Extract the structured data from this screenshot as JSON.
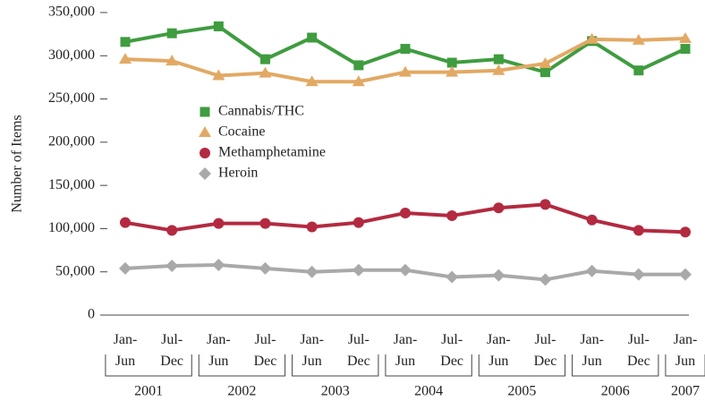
{
  "chart_data": {
    "type": "line",
    "y_label": "Number of Items",
    "categories": [
      "Jan-\nJun",
      "Jul-\nDec",
      "Jan-\nJun",
      "Jul-\nDec",
      "Jan-\nJun",
      "Jul-\nDec",
      "Jan-\nJun",
      "Jul-\nDec",
      "Jan-\nJun",
      "Jul-\nDec",
      "Jan-\nJun",
      "Jul-\nDec",
      "Jan-\nJun"
    ],
    "x_groups": [
      "2001",
      "2002",
      "2003",
      "2004",
      "2005",
      "2006",
      "2007"
    ],
    "series": [
      {
        "name": "Cannabis/THC",
        "color": "#3f9c3f",
        "marker": "square",
        "values": [
          316000,
          326000,
          334000,
          296000,
          321000,
          289000,
          308000,
          292000,
          296000,
          281000,
          317000,
          283000,
          308000
        ]
      },
      {
        "name": "Cocaine",
        "color": "#e2a964",
        "marker": "triangle",
        "values": [
          296000,
          294000,
          277000,
          280000,
          270000,
          270000,
          281000,
          281000,
          283000,
          291000,
          319000,
          318000,
          320000
        ]
      },
      {
        "name": "Methamphetamine",
        "color": "#b32a40",
        "marker": "circle",
        "values": [
          107000,
          98000,
          106000,
          106000,
          102000,
          107000,
          118000,
          115000,
          124000,
          128000,
          110000,
          98000,
          96000
        ]
      },
      {
        "name": "Heroin",
        "color": "#a9a9a9",
        "marker": "diamond",
        "values": [
          54000,
          57000,
          58000,
          54000,
          50000,
          52000,
          52000,
          44000,
          46000,
          41000,
          51000,
          47000,
          47000
        ]
      }
    ],
    "ylim": [
      0,
      350000
    ],
    "yticks": [
      0,
      {
        "value": 50000,
        "label": "50,000"
      },
      {
        "value": 100000,
        "label": "100,000"
      },
      {
        "value": 150000,
        "label": "150,000"
      },
      {
        "value": 200000,
        "label": "200,000"
      },
      {
        "value": 250000,
        "label": "250,000"
      },
      {
        "value": 300000,
        "label": "300,000"
      },
      {
        "value": 350000,
        "label": "350,000"
      }
    ],
    "grid": false
  }
}
